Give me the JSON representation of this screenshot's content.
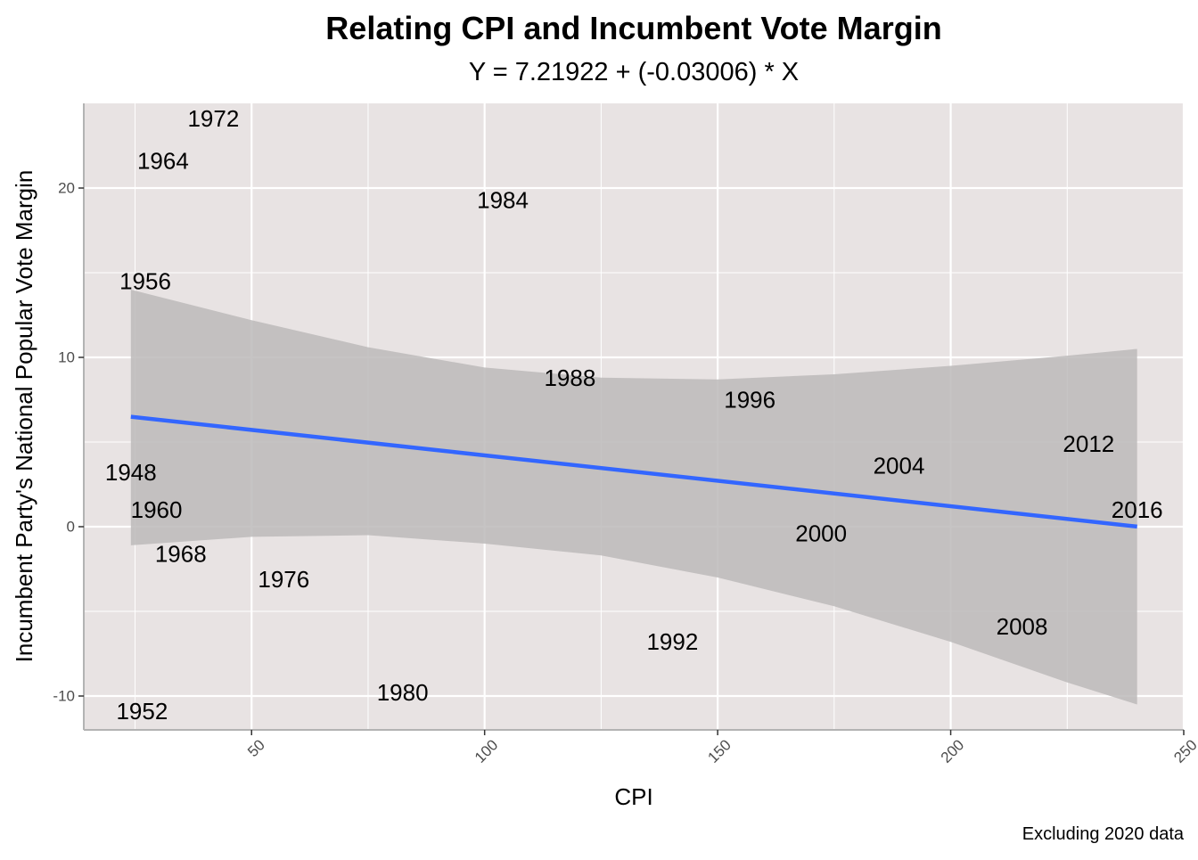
{
  "chart_data": {
    "type": "scatter",
    "title": "Relating CPI and Incumbent Vote Margin",
    "subtitle": "Y = 7.21922 + (-0.03006) * X",
    "xlabel": "CPI",
    "ylabel": "Incumbent Party's National Popular Vote Margin",
    "caption": "Excluding 2020 data",
    "xlim": [
      14,
      250
    ],
    "ylim": [
      -12,
      25
    ],
    "x_ticks": [
      50,
      100,
      150,
      200,
      250
    ],
    "x_tick_labels": [
      "50",
      "100",
      "150",
      "200",
      "250"
    ],
    "y_ticks": [
      -10,
      0,
      10,
      20
    ],
    "y_tick_labels": [
      "-10",
      "0",
      "10",
      "20"
    ],
    "points": [
      {
        "label": "1948",
        "x": 24.1,
        "y": 3.2
      },
      {
        "label": "1952",
        "x": 26.5,
        "y": -10.9
      },
      {
        "label": "1956",
        "x": 27.2,
        "y": 14.5
      },
      {
        "label": "1960",
        "x": 29.6,
        "y": 1.0
      },
      {
        "label": "1964",
        "x": 31.0,
        "y": 21.6
      },
      {
        "label": "1968",
        "x": 34.8,
        "y": -1.6
      },
      {
        "label": "1972",
        "x": 41.8,
        "y": 24.1
      },
      {
        "label": "1976",
        "x": 56.9,
        "y": -3.1
      },
      {
        "label": "1980",
        "x": 82.4,
        "y": -9.8
      },
      {
        "label": "1984",
        "x": 103.9,
        "y": 19.3
      },
      {
        "label": "1988",
        "x": 118.3,
        "y": 8.8
      },
      {
        "label": "1992",
        "x": 140.3,
        "y": -6.8
      },
      {
        "label": "1996",
        "x": 156.9,
        "y": 7.5
      },
      {
        "label": "2000",
        "x": 172.2,
        "y": -0.4
      },
      {
        "label": "2004",
        "x": 188.9,
        "y": 3.6
      },
      {
        "label": "2008",
        "x": 215.3,
        "y": -5.9
      },
      {
        "label": "2012",
        "x": 229.6,
        "y": 4.9
      },
      {
        "label": "2016",
        "x": 240.0,
        "y": 1.0
      }
    ],
    "fit": {
      "type": "linear",
      "intercept": 7.21922,
      "slope": -0.03006,
      "x_range": [
        24.1,
        240.0
      ],
      "color": "#3366ff",
      "ci_band": [
        {
          "x": 24.1,
          "upper": 14.0,
          "lower": -1.1
        },
        {
          "x": 50,
          "upper": 12.2,
          "lower": -0.6
        },
        {
          "x": 75,
          "upper": 10.6,
          "lower": -0.5
        },
        {
          "x": 100,
          "upper": 9.4,
          "lower": -1.0
        },
        {
          "x": 125,
          "upper": 8.8,
          "lower": -1.7
        },
        {
          "x": 150,
          "upper": 8.7,
          "lower": -3.0
        },
        {
          "x": 175,
          "upper": 9.0,
          "lower": -4.7
        },
        {
          "x": 200,
          "upper": 9.5,
          "lower": -6.8
        },
        {
          "x": 225,
          "upper": 10.1,
          "lower": -9.2
        },
        {
          "x": 240.0,
          "upper": 10.5,
          "lower": -10.5
        }
      ]
    },
    "colors": {
      "panel_background": "#e8e3e3",
      "grid": "#ffffff",
      "ci_band": "#bcbaba",
      "fit_line": "#3366ff"
    },
    "grid": true,
    "legend": "none"
  }
}
